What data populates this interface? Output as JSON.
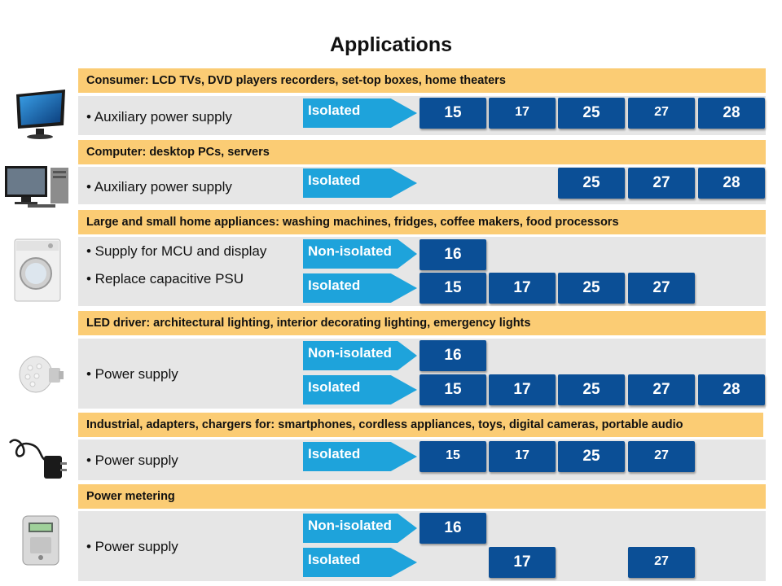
{
  "title": "Applications",
  "labels": {
    "isolated": "Isolated",
    "non_isolated": "Non-isolated"
  },
  "sections": [
    {
      "header": "Consumer: LCD TVs, DVD players recorders, set-top boxes, home theaters",
      "bullets": [
        "• Auxiliary power supply"
      ],
      "isolated": [
        "15",
        "17",
        "25",
        "27",
        "28"
      ]
    },
    {
      "header": "Computer: desktop PCs, servers",
      "bullets": [
        "• Auxiliary power supply"
      ],
      "isolated": [
        "25",
        "27",
        "28"
      ]
    },
    {
      "header": "Large and small home appliances: washing machines, fridges, coffee makers, food processors",
      "bullets": [
        "• Supply for MCU and display",
        "• Replace capacitive PSU"
      ],
      "non_isolated": [
        "16"
      ],
      "isolated": [
        "15",
        "17",
        "25",
        "27"
      ]
    },
    {
      "header": "LED driver: architectural lighting, interior decorating lighting, emergency lights",
      "bullets": [
        "• Power supply"
      ],
      "non_isolated": [
        "16"
      ],
      "isolated": [
        "15",
        "17",
        "25",
        "27",
        "28"
      ]
    },
    {
      "header": "Industrial, adapters, chargers for: smartphones, cordless appliances, toys, digital cameras, portable audio",
      "bullets": [
        "• Power supply"
      ],
      "isolated": [
        "15",
        "17",
        "25",
        "27"
      ]
    },
    {
      "header": "Power metering",
      "bullets": [
        "• Power supply"
      ],
      "non_isolated": [
        "16"
      ],
      "isolated": [
        "17",
        "27"
      ]
    }
  ]
}
